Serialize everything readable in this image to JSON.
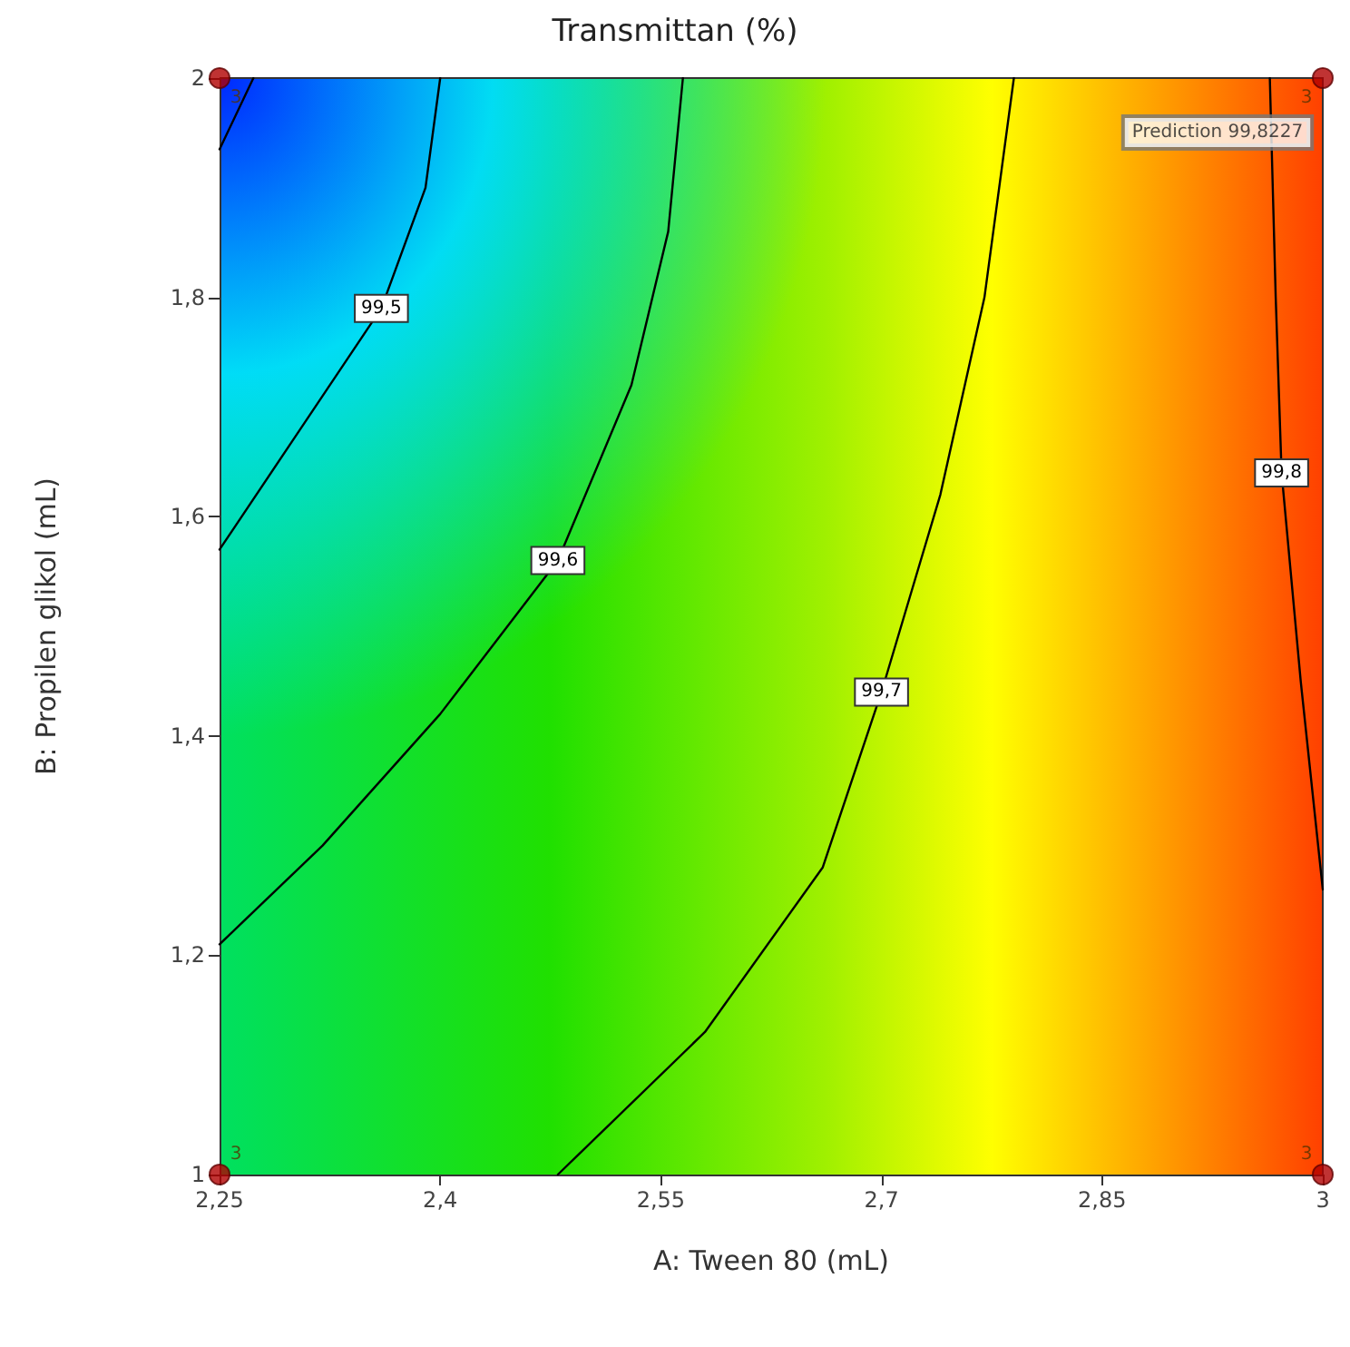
{
  "chart_data": {
    "type": "line",
    "title": "Transmittan (%)",
    "xlabel": "A: Tween 80 (mL)",
    "ylabel": "B: Propilen glikol (mL)",
    "xlim": [
      2.25,
      3
    ],
    "xticks": [
      {
        "value": 2.25,
        "label": "2,25"
      },
      {
        "value": 2.4,
        "label": "2,4"
      },
      {
        "value": 2.55,
        "label": "2,55"
      },
      {
        "value": 2.7,
        "label": "2,7"
      },
      {
        "value": 2.85,
        "label": "2,85"
      },
      3
    ],
    "ylim": [
      1,
      2
    ],
    "yticks": [
      1,
      {
        "value": 1.2,
        "label": "1,2"
      },
      {
        "value": 1.4,
        "label": "1,4"
      },
      {
        "value": 1.6,
        "label": "1,6"
      },
      {
        "value": 1.8,
        "label": "1,8"
      },
      2
    ],
    "grid": false,
    "legend": false,
    "marker": "none",
    "line_style": "solid",
    "series": [
      {
        "color": "#000000",
        "x": [
          2.25,
          2.273
        ],
        "values": [
          1.935,
          2.0
        ]
      },
      {
        "name": "99,5",
        "color": "#000000",
        "x": [
          2.25,
          2.3,
          2.36,
          2.39,
          2.4
        ],
        "values": [
          1.57,
          1.67,
          1.79,
          1.9,
          2.0
        ]
      },
      {
        "name": "99,6",
        "color": "#000000",
        "x": [
          2.25,
          2.32,
          2.4,
          2.48,
          2.53,
          2.555,
          2.565
        ],
        "values": [
          1.21,
          1.3,
          1.42,
          1.56,
          1.72,
          1.86,
          2.0
        ]
      },
      {
        "name": "99,7",
        "color": "#000000",
        "x": [
          2.48,
          2.58,
          2.66,
          2.7,
          2.74,
          2.77,
          2.79
        ],
        "values": [
          1.0,
          1.13,
          1.28,
          1.44,
          1.62,
          1.8,
          2.0
        ]
      },
      {
        "name": "99,8",
        "color": "#000000",
        "x": [
          2.964,
          2.968,
          2.972,
          2.985,
          3.0
        ],
        "values": [
          2.0,
          1.8,
          1.64,
          1.45,
          1.26
        ]
      },
      {
        "type": "scatter",
        "marker": "circle",
        "color": "#b00000",
        "x": [
          2.25,
          2.25,
          3,
          3
        ],
        "values": [
          1,
          2,
          1,
          2
        ]
      }
    ],
    "annotations": [
      "3",
      "3",
      "3",
      "3",
      {
        "text": "Prediction 99,8227",
        "x": 3,
        "y": 2
      }
    ]
  }
}
